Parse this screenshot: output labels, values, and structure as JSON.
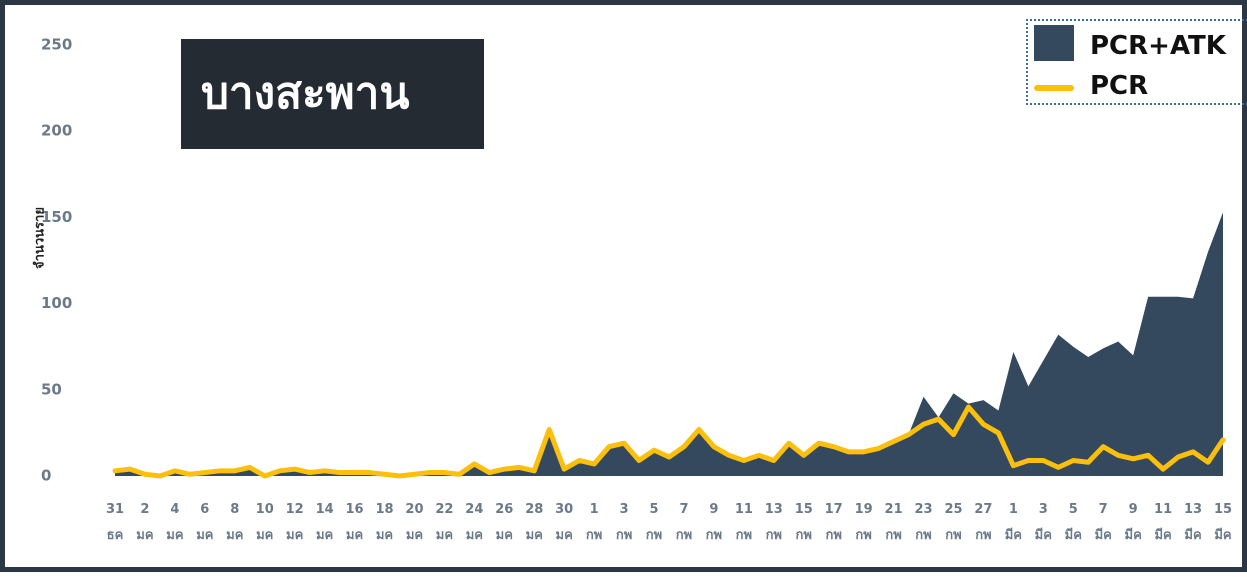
{
  "chart_data": {
    "type": "area",
    "title": "บางสะพาน",
    "y_label": "จำนวนราย",
    "categories": [
      "31 ธค",
      null,
      "2 มค",
      null,
      "4 มค",
      null,
      "6 มค",
      null,
      "8 มค",
      null,
      "10 มค",
      null,
      "12 มค",
      null,
      "14 มค",
      null,
      "16 มค",
      null,
      "18 มค",
      null,
      "20 มค",
      null,
      "22 มค",
      null,
      "24 มค",
      null,
      "26 มค",
      null,
      "28 มค",
      null,
      "30 มค",
      null,
      "1 กพ",
      null,
      "3 กพ",
      null,
      "5 กพ",
      null,
      "7 กพ",
      null,
      "9 กพ",
      null,
      "11 กพ",
      null,
      "13 กพ",
      null,
      "15 กพ",
      null,
      "17 กพ",
      null,
      "19 กพ",
      null,
      "21 กพ",
      null,
      "23 กพ",
      null,
      "25 กพ",
      null,
      "27 กพ",
      null,
      "1 มีค",
      null,
      "3 มีค",
      null,
      "5 มีค",
      null,
      "7 มีค",
      null,
      "9 มีค",
      null,
      "11 มีค",
      null,
      "13 มีค",
      null,
      "15 มีค"
    ],
    "series": [
      {
        "name": "PCR+ATK",
        "kind": "area",
        "color": "#34495e",
        "values": [
          3,
          4,
          1,
          0,
          3,
          1,
          2,
          3,
          3,
          5,
          0,
          3,
          4,
          2,
          3,
          2,
          2,
          2,
          1,
          0,
          1,
          2,
          2,
          1,
          7,
          2,
          4,
          5,
          3,
          27,
          4,
          9,
          7,
          17,
          19,
          9,
          15,
          11,
          17,
          27,
          17,
          12,
          9,
          12,
          9,
          19,
          12,
          19,
          17,
          14,
          14,
          16,
          20,
          24,
          46,
          34,
          48,
          42,
          44,
          38,
          72,
          52,
          67,
          82,
          75,
          69,
          74,
          78,
          70,
          104,
          104,
          104,
          103,
          130,
          153
        ]
      },
      {
        "name": "PCR",
        "kind": "line",
        "color": "#fbbf0c",
        "values": [
          3,
          4,
          1,
          0,
          3,
          1,
          2,
          3,
          3,
          5,
          0,
          3,
          4,
          2,
          3,
          2,
          2,
          2,
          1,
          0,
          1,
          2,
          2,
          1,
          7,
          2,
          4,
          5,
          3,
          27,
          4,
          9,
          7,
          17,
          19,
          9,
          15,
          11,
          17,
          27,
          17,
          12,
          9,
          12,
          9,
          19,
          12,
          19,
          17,
          14,
          14,
          16,
          20,
          24,
          30,
          33,
          24,
          40,
          30,
          25,
          6,
          9,
          9,
          5,
          9,
          8,
          17,
          12,
          10,
          12,
          4,
          11,
          14,
          8,
          21
        ]
      }
    ],
    "ylim": [
      0,
      250
    ],
    "yticks": [
      0,
      50,
      100,
      150,
      200,
      250
    ],
    "grid": false,
    "legend": "upper right"
  }
}
